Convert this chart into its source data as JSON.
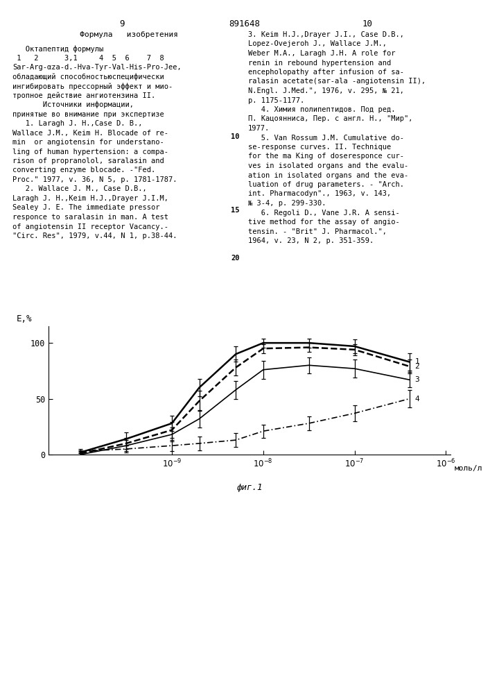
{
  "ylabel": "E,%",
  "xlabel": "моль/л",
  "fig_caption": "фиг.1",
  "yticks": [
    0,
    50,
    100
  ],
  "curve1": {
    "label": "1",
    "x": [
      -10.0,
      -9.5,
      -9.0,
      -8.7,
      -8.3,
      -8.0,
      -7.5,
      -7.0,
      -6.4
    ],
    "y": [
      2,
      14,
      28,
      60,
      90,
      100,
      100,
      97,
      83
    ],
    "err_lo": [
      2,
      6,
      7,
      8,
      7,
      4,
      4,
      6,
      8
    ],
    "err_hi": [
      2,
      6,
      7,
      8,
      7,
      4,
      4,
      6,
      8
    ]
  },
  "curve2": {
    "label": "2",
    "x": [
      -10.0,
      -9.5,
      -9.0,
      -8.7,
      -8.3,
      -8.0,
      -7.5,
      -7.0,
      -6.4
    ],
    "y": [
      1,
      10,
      22,
      48,
      78,
      95,
      96,
      94,
      79
    ],
    "err_lo": [
      2,
      5,
      7,
      9,
      7,
      4,
      4,
      5,
      6
    ],
    "err_hi": [
      2,
      5,
      7,
      9,
      7,
      4,
      4,
      5,
      6
    ]
  },
  "curve3": {
    "label": "3",
    "x": [
      -10.0,
      -9.5,
      -9.0,
      -8.7,
      -8.3,
      -8.0,
      -7.5,
      -7.0,
      -6.4
    ],
    "y": [
      0,
      8,
      18,
      32,
      58,
      76,
      80,
      77,
      67
    ],
    "err_lo": [
      2,
      5,
      6,
      8,
      8,
      8,
      7,
      8,
      7
    ],
    "err_hi": [
      2,
      5,
      6,
      8,
      8,
      8,
      7,
      8,
      7
    ]
  },
  "curve4": {
    "label": "4",
    "x": [
      -10.0,
      -9.5,
      -9.0,
      -8.7,
      -8.3,
      -8.0,
      -7.5,
      -7.0,
      -6.4
    ],
    "y": [
      3,
      5,
      8,
      10,
      13,
      21,
      28,
      37,
      50
    ],
    "err_lo": [
      2,
      3,
      5,
      6,
      6,
      6,
      6,
      7,
      8
    ],
    "err_hi": [
      2,
      3,
      5,
      6,
      6,
      6,
      6,
      7,
      8
    ]
  },
  "xmin": -10.35,
  "xmax": -5.95,
  "ymin": 0,
  "ymax": 115,
  "xtick_positions": [
    -9,
    -8,
    -7,
    -6
  ],
  "page_left": "9",
  "page_right": "10",
  "patent": "891648",
  "left_header": "   Формула   изобретения",
  "left_body": "   Октапептид формулы\n 1   2      3,1     4  5  6    7  8\nSar-Arg-αza-d.-Hva-Tyr-Val-His-Pro-Jее,\nобладающий способностьюспецифически\nингибировать прессорный эффект и мио-\nтропное действие ангиотензина II.\n       Источники информации,\nпринятые во внимание при экспертизе\n   1. Laragh J. H.,Case D. B.,\nWallace J.M., Keim H. Blocade of re-\nmin  or angiotensin for understano-\nling of human hypertension: a compa-\nrison of propranolol, saralasin and\nconverting enzyme blocade. -\"Fed.\nProc.\" 1977, v. 36, N 5, p. 1781-1787.\n   2. Wallace J. M., Case D.B.,\nLaragh J. H.,Keim H.J.,Drayer J.I.M,\nSealey J. E. The immediate pressor\nresponce to saralasin in man. A test\nof angiotensin II receptor Vacancy.-\n\"Circ. Res\", 1979, v.44, N 1, p.38-44.",
  "right_body": "3. Keim H.J.,Drayer J.I., Case D.B.,\nLopez-Ovejeroh J., Wallace J.M.,\nWeber M.A., Laragh J.H. A role for\nrenin in rebound hypertension and\nencepholopathy after infusion of sa-\nralasin acetate(sar-ala -angiotensin II),\nN.Engl. J.Med.\", 1976, v. 295, № 21,\np. 1175-1177.\n   4. Химия полипептидов. Под ред.\nП. Кацоянниса, Пер. с англ. Н., \"Мир\",\n1977.\n   5. Van Rossum J.M. Cumulative do-\nse-response curves. II. Technique\nfor the ma King of doseresponce cur-\nves in isolated organs and the evalu-\nation in isolated organs and the eva-\nluation of drug parameters. - \"Arch.\nint. Pharmacodyn\"., 1963, v. 143,\n№ 3-4, p. 299-330.\n   6. Regoli D., Vane J.R. A sensi-\ntive method for the assay of angio-\ntensin. - \"Brit\" J. Pharmacol.\",\n1964, v. 23, N 2, p. 351-359.",
  "right_margin_note": "10\n15\n20"
}
